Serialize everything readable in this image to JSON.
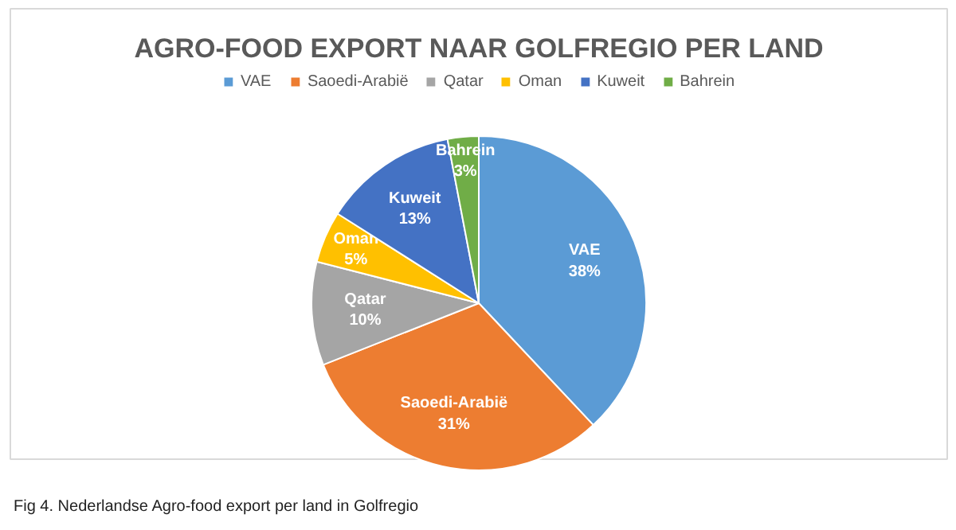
{
  "chart_data": {
    "type": "pie",
    "title": "AGRO-FOOD EXPORT NAAR GOLFREGIO PER LAND",
    "categories": [
      "VAE",
      "Saoedi-Arabië",
      "Qatar",
      "Oman",
      "Kuweit",
      "Bahrein"
    ],
    "values": [
      38,
      31,
      10,
      5,
      13,
      3
    ],
    "colors": [
      "#5b9bd5",
      "#ed7d31",
      "#a5a5a5",
      "#ffc000",
      "#4472c4",
      "#70ad47"
    ],
    "value_labels": [
      "38%",
      "31%",
      "10%",
      "5%",
      "13%",
      "3%"
    ],
    "legend": "top",
    "annotations": [
      "Fig 4. Nederlandse Agro-food export per land in Golfregio"
    ]
  }
}
